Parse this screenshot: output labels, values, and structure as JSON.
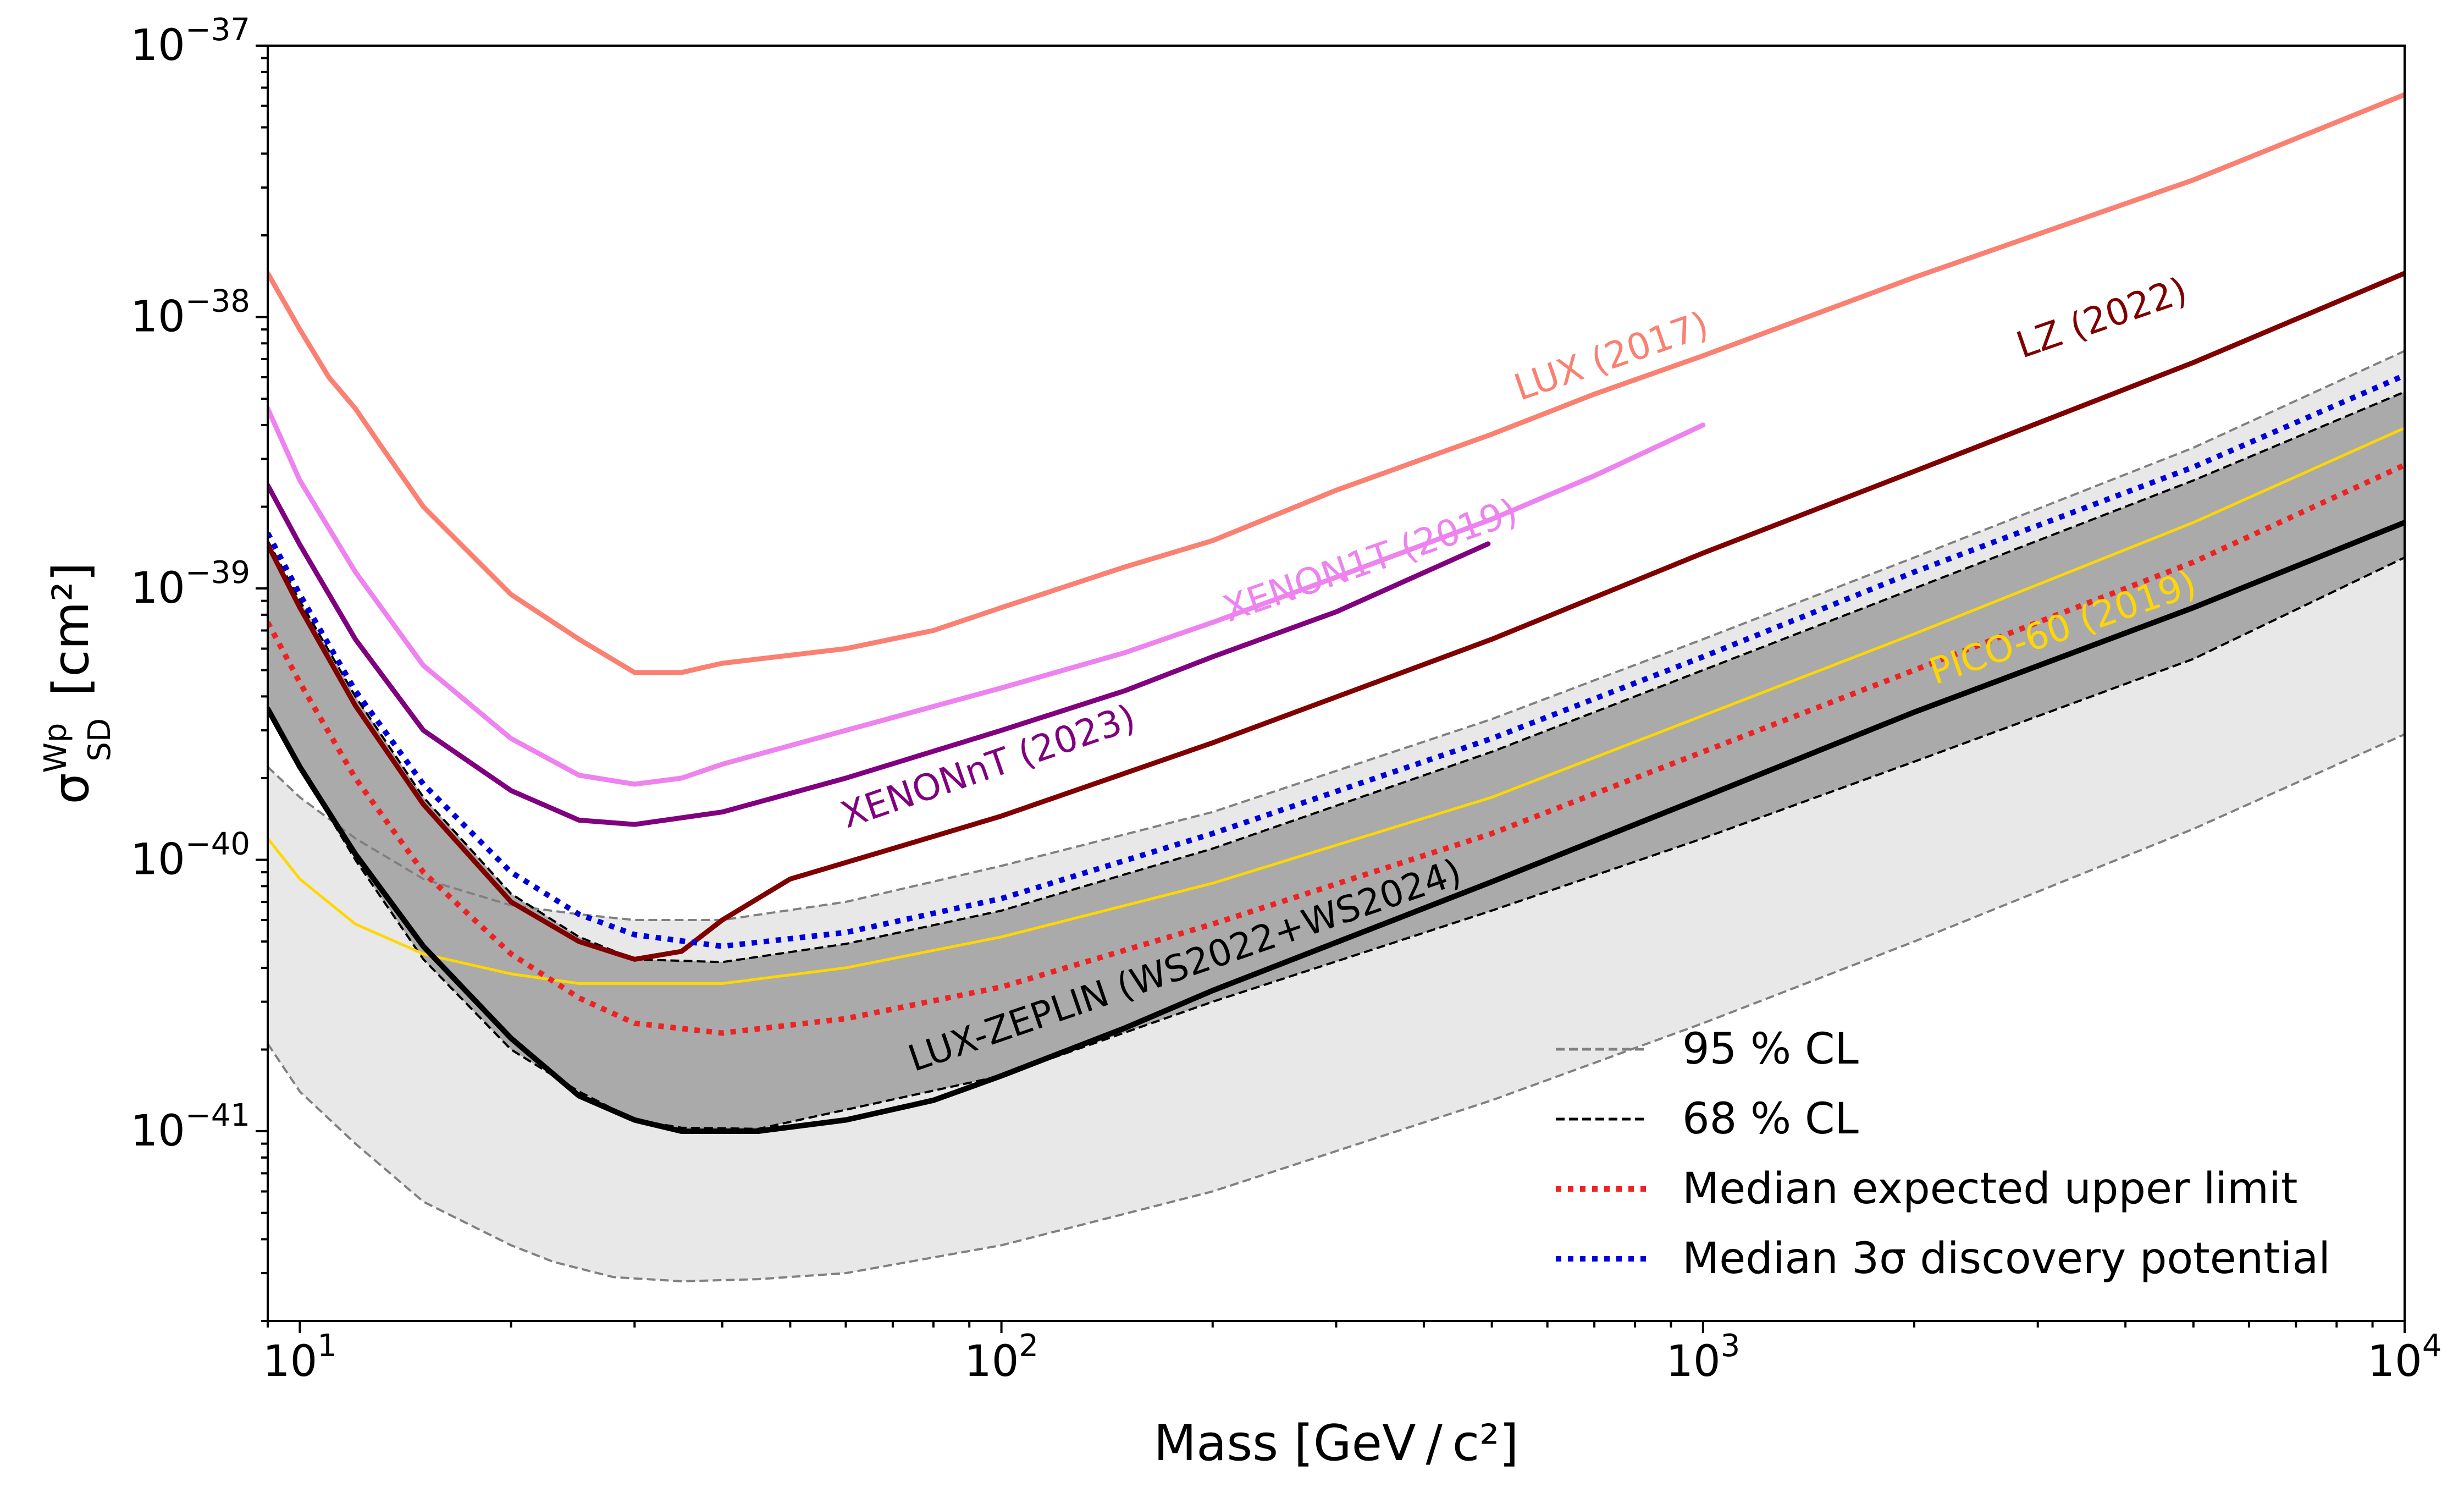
{
  "chart_data": {
    "type": "line",
    "title": "",
    "xlabel": "Mass [GeV / c²]",
    "ylabel": "σ Wp SD [cm²]",
    "x_scale": "log",
    "y_scale": "log",
    "xlim": [
      9,
      10000
    ],
    "ylim": [
      2e-42,
      1e-37
    ],
    "x_ticks": [
      {
        "value": 10,
        "base": "10",
        "exp": "1"
      },
      {
        "value": 100,
        "base": "10",
        "exp": "2"
      },
      {
        "value": 1000,
        "base": "10",
        "exp": "3"
      },
      {
        "value": 10000,
        "base": "10",
        "exp": "4"
      }
    ],
    "y_ticks": [
      {
        "value": 1e-37,
        "base": "10",
        "exp": "−37"
      },
      {
        "value": 1e-38,
        "base": "10",
        "exp": "−38"
      },
      {
        "value": 1e-39,
        "base": "10",
        "exp": "−39"
      },
      {
        "value": 1e-40,
        "base": "10",
        "exp": "−40"
      },
      {
        "value": 1e-41,
        "base": "10",
        "exp": "−41"
      }
    ],
    "bands": [
      {
        "name": "95% CL band",
        "color": "#e8e8e8",
        "upper": [
          [
            9,
            2.2e-40
          ],
          [
            10,
            1.7e-40
          ],
          [
            12,
            1.2e-40
          ],
          [
            15,
            8.5e-41
          ],
          [
            20,
            6.8e-41
          ],
          [
            25,
            6.3e-41
          ],
          [
            30,
            6e-41
          ],
          [
            40,
            6e-41
          ],
          [
            60,
            7e-41
          ],
          [
            100,
            9.5e-41
          ],
          [
            200,
            1.5e-40
          ],
          [
            500,
            3.3e-40
          ],
          [
            1000,
            6.5e-40
          ],
          [
            2000,
            1.3e-39
          ],
          [
            5000,
            3.3e-39
          ],
          [
            10000,
            7.5e-39
          ]
        ],
        "lower": [
          [
            9,
            2.1e-41
          ],
          [
            10,
            1.4e-41
          ],
          [
            12,
            9e-42
          ],
          [
            15,
            5.5e-42
          ],
          [
            20,
            3.8e-42
          ],
          [
            23,
            3.3e-42
          ],
          [
            28,
            2.9e-42
          ],
          [
            35,
            2.8e-42
          ],
          [
            45,
            2.85e-42
          ],
          [
            60,
            3e-42
          ],
          [
            100,
            3.8e-42
          ],
          [
            200,
            6e-42
          ],
          [
            500,
            1.3e-41
          ],
          [
            1000,
            2.5e-41
          ],
          [
            2000,
            5e-41
          ],
          [
            5000,
            1.3e-40
          ],
          [
            10000,
            2.9e-40
          ]
        ]
      },
      {
        "name": "68% CL band",
        "color": "#aaaaaa",
        "upper": [
          [
            9,
            1.5e-39
          ],
          [
            10,
            9e-40
          ],
          [
            12,
            4e-40
          ],
          [
            15,
            1.7e-40
          ],
          [
            20,
            7.5e-41
          ],
          [
            25,
            5.2e-41
          ],
          [
            30,
            4.3e-41
          ],
          [
            40,
            4.2e-41
          ],
          [
            60,
            4.9e-41
          ],
          [
            100,
            6.5e-41
          ],
          [
            200,
            1.1e-40
          ],
          [
            500,
            2.5e-40
          ],
          [
            1000,
            5e-40
          ],
          [
            2000,
            1e-39
          ],
          [
            5000,
            2.5e-39
          ],
          [
            10000,
            5.3e-39
          ]
        ],
        "lower": [
          [
            9,
            3.6e-40
          ],
          [
            10,
            2.2e-40
          ],
          [
            12,
            1e-40
          ],
          [
            15,
            4.3e-41
          ],
          [
            20,
            2e-41
          ],
          [
            25,
            1.4e-41
          ],
          [
            30,
            1.1e-41
          ],
          [
            35,
            1.03e-41
          ],
          [
            45,
            1.02e-41
          ],
          [
            60,
            1.2e-41
          ],
          [
            100,
            1.6e-41
          ],
          [
            200,
            3e-41
          ],
          [
            500,
            6.5e-41
          ],
          [
            1000,
            1.2e-40
          ],
          [
            2000,
            2.3e-40
          ],
          [
            5000,
            5.5e-40
          ],
          [
            10000,
            1.3e-39
          ]
        ]
      }
    ],
    "series": [
      {
        "name": "LUX (2017)",
        "color": "#fa8072",
        "dash": "solid",
        "width": 9,
        "label": "LUX (2017)",
        "points": [
          [
            9,
            1.45e-38
          ],
          [
            10,
            9e-39
          ],
          [
            11,
            6e-39
          ],
          [
            12,
            4.6e-39
          ],
          [
            13,
            3.4e-39
          ],
          [
            15,
            2e-39
          ],
          [
            20,
            9.5e-40
          ],
          [
            25,
            6.5e-40
          ],
          [
            30,
            4.9e-40
          ],
          [
            35,
            4.9e-40
          ],
          [
            40,
            5.3e-40
          ],
          [
            60,
            6e-40
          ],
          [
            80,
            7e-40
          ],
          [
            100,
            8.5e-40
          ],
          [
            150,
            1.2e-39
          ],
          [
            200,
            1.5e-39
          ],
          [
            300,
            2.3e-39
          ],
          [
            500,
            3.7e-39
          ],
          [
            700,
            5.2e-39
          ],
          [
            1000,
            7.2e-39
          ],
          [
            2000,
            1.4e-38
          ],
          [
            5000,
            3.2e-38
          ],
          [
            10000,
            6.6e-38
          ]
        ],
        "label_at": [
          750,
          6.5e-39
        ],
        "label_angle": -19
      },
      {
        "name": "XENON1T (2019)",
        "color": "#ee82ee",
        "dash": "solid",
        "width": 9,
        "label": "XENON1T (2019)",
        "points": [
          [
            9,
            4.6e-39
          ],
          [
            10,
            2.5e-39
          ],
          [
            12,
            1.15e-39
          ],
          [
            15,
            5.2e-40
          ],
          [
            20,
            2.8e-40
          ],
          [
            25,
            2.05e-40
          ],
          [
            30,
            1.9e-40
          ],
          [
            35,
            2e-40
          ],
          [
            40,
            2.25e-40
          ],
          [
            60,
            3e-40
          ],
          [
            100,
            4.3e-40
          ],
          [
            150,
            5.8e-40
          ],
          [
            200,
            7.5e-40
          ],
          [
            300,
            1.1e-39
          ],
          [
            500,
            1.8e-39
          ],
          [
            700,
            2.6e-39
          ],
          [
            1000,
            4e-39
          ]
        ],
        "label_at": [
          340,
          1.15e-39
        ],
        "label_angle": -19
      },
      {
        "name": "XENONnT (2023)",
        "color": "#800080",
        "dash": "solid",
        "width": 9,
        "label": "XENONnT (2023)",
        "points": [
          [
            9,
            2.4e-39
          ],
          [
            10,
            1.45e-39
          ],
          [
            12,
            6.5e-40
          ],
          [
            15,
            3e-40
          ],
          [
            20,
            1.8e-40
          ],
          [
            25,
            1.4e-40
          ],
          [
            30,
            1.35e-40
          ],
          [
            40,
            1.5e-40
          ],
          [
            60,
            2e-40
          ],
          [
            100,
            3e-40
          ],
          [
            150,
            4.2e-40
          ],
          [
            200,
            5.6e-40
          ],
          [
            300,
            8.2e-40
          ],
          [
            494,
            1.46e-39
          ]
        ],
        "label_at": [
          97,
          2e-40
        ],
        "label_angle": -19
      },
      {
        "name": "LZ (2022)",
        "color": "#800000",
        "dash": "solid",
        "width": 9,
        "label": "LZ (2022)",
        "points": [
          [
            9,
            1.45e-39
          ],
          [
            10,
            8.5e-40
          ],
          [
            12,
            3.7e-40
          ],
          [
            15,
            1.6e-40
          ],
          [
            20,
            7e-41
          ],
          [
            25,
            5e-41
          ],
          [
            30,
            4.3e-41
          ],
          [
            35,
            4.6e-41
          ],
          [
            40,
            6e-41
          ],
          [
            50,
            8.5e-41
          ],
          [
            70,
            1.1e-40
          ],
          [
            100,
            1.45e-40
          ],
          [
            200,
            2.7e-40
          ],
          [
            500,
            6.5e-40
          ],
          [
            1000,
            1.35e-39
          ],
          [
            2000,
            2.7e-39
          ],
          [
            5000,
            6.8e-39
          ],
          [
            10000,
            1.45e-38
          ]
        ],
        "label_at": [
          3750,
          9e-39
        ],
        "label_angle": -19
      },
      {
        "name": "PICO-60 (2019)",
        "color": "#ffd700",
        "dash": "solid",
        "width": 5,
        "label": "PICO-60 (2019)",
        "points": [
          [
            9,
            1.2e-40
          ],
          [
            10,
            8.5e-41
          ],
          [
            12,
            5.8e-41
          ],
          [
            15,
            4.5e-41
          ],
          [
            20,
            3.8e-41
          ],
          [
            25,
            3.5e-41
          ],
          [
            30,
            3.5e-41
          ],
          [
            40,
            3.5e-41
          ],
          [
            60,
            4e-41
          ],
          [
            100,
            5.2e-41
          ],
          [
            200,
            8.2e-41
          ],
          [
            500,
            1.7e-40
          ],
          [
            1000,
            3.4e-40
          ],
          [
            2000,
            6.8e-40
          ],
          [
            5000,
            1.75e-39
          ],
          [
            10000,
            3.9e-39
          ]
        ],
        "label_at": [
          3300,
          6.5e-40
        ],
        "label_angle": -19
      },
      {
        "name": "Median expected upper limit",
        "color": "#ee2222",
        "dash": "dotted",
        "width": 10,
        "legend": true,
        "points": [
          [
            9,
            7.5e-40
          ],
          [
            10,
            4.5e-40
          ],
          [
            12,
            2e-40
          ],
          [
            15,
            9e-41
          ],
          [
            20,
            4.5e-41
          ],
          [
            25,
            3.1e-41
          ],
          [
            30,
            2.5e-41
          ],
          [
            40,
            2.3e-41
          ],
          [
            60,
            2.6e-41
          ],
          [
            100,
            3.4e-41
          ],
          [
            200,
            5.8e-41
          ],
          [
            500,
            1.25e-40
          ],
          [
            1000,
            2.5e-40
          ],
          [
            2000,
            5e-40
          ],
          [
            5000,
            1.25e-39
          ],
          [
            10000,
            2.85e-39
          ]
        ]
      },
      {
        "name": "Median 3σ discovery potential",
        "color": "#0000dd",
        "dash": "dotted",
        "width": 10,
        "legend": true,
        "points": [
          [
            9,
            1.6e-39
          ],
          [
            10,
            9.5e-40
          ],
          [
            12,
            4.2e-40
          ],
          [
            15,
            1.9e-40
          ],
          [
            20,
            9e-41
          ],
          [
            25,
            6.3e-41
          ],
          [
            30,
            5.3e-41
          ],
          [
            40,
            4.8e-41
          ],
          [
            60,
            5.4e-41
          ],
          [
            100,
            7.2e-41
          ],
          [
            200,
            1.25e-40
          ],
          [
            500,
            2.8e-40
          ],
          [
            1000,
            5.6e-40
          ],
          [
            2000,
            1.15e-39
          ],
          [
            5000,
            2.8e-39
          ],
          [
            10000,
            6.1e-39
          ]
        ]
      },
      {
        "name": "LUX-ZEPLIN (WS2022+WS2024)",
        "color": "#000000",
        "dash": "solid",
        "width": 10,
        "label": "LUX-ZEPLIN (WS2022+WS2024)",
        "points": [
          [
            9,
            3.6e-40
          ],
          [
            10,
            2.2e-40
          ],
          [
            12,
            1.05e-40
          ],
          [
            15,
            4.8e-41
          ],
          [
            20,
            2.2e-41
          ],
          [
            25,
            1.35e-41
          ],
          [
            30,
            1.1e-41
          ],
          [
            35,
            1e-41
          ],
          [
            45,
            1e-41
          ],
          [
            60,
            1.1e-41
          ],
          [
            80,
            1.3e-41
          ],
          [
            100,
            1.6e-41
          ],
          [
            150,
            2.4e-41
          ],
          [
            200,
            3.3e-41
          ],
          [
            500,
            8.3e-41
          ],
          [
            1000,
            1.7e-40
          ],
          [
            2000,
            3.5e-40
          ],
          [
            5000,
            8.5e-40
          ],
          [
            10000,
            1.75e-39
          ]
        ],
        "label_at": [
          185,
          3.7e-41
        ],
        "label_angle": -19
      },
      {
        "name": "95 % CL",
        "color": "#808080",
        "dash": "dashed",
        "width": 5,
        "legend": true,
        "points": []
      },
      {
        "name": "68 % CL",
        "color": "#000000",
        "dash": "dashed",
        "width": 5,
        "legend": true,
        "points": []
      }
    ],
    "legend": {
      "placement": "lower-right",
      "entries": [
        "95 % CL",
        "68 % CL",
        "Median expected upper limit",
        "Median 3σ discovery potential"
      ]
    }
  }
}
